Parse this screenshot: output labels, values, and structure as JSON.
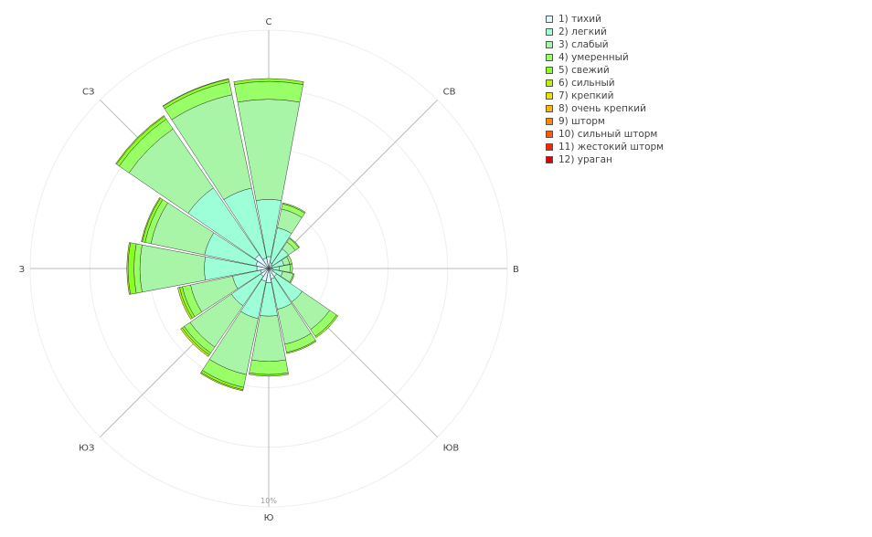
{
  "chart_data": {
    "type": "barpolar",
    "title": "",
    "direction_labels": [
      {
        "direction": "С",
        "angle": 0
      },
      {
        "direction": "СВ",
        "angle": 45
      },
      {
        "direction": "В",
        "angle": 90
      },
      {
        "direction": "ЮВ",
        "angle": 135
      },
      {
        "direction": "Ю",
        "angle": 180
      },
      {
        "direction": "ЮЗ",
        "angle": 225
      },
      {
        "direction": "З",
        "angle": 270
      },
      {
        "direction": "СЗ",
        "angle": 315
      }
    ],
    "sectors": [
      0,
      22.5,
      45,
      67.5,
      90,
      112.5,
      135,
      157.5,
      180,
      202.5,
      225,
      247.5,
      270,
      292.5,
      315,
      337.5
    ],
    "radial_tick": {
      "value": 10,
      "label": "10%"
    },
    "grid_rings": [
      2.5,
      5,
      7.5,
      10
    ],
    "radial_max": 10,
    "legend_position": "top-right",
    "series": [
      {
        "name": "1) тихий",
        "color": "#dcfaff",
        "values": [
          0.5,
          0.25,
          0.2,
          0.15,
          0.15,
          0.2,
          0.4,
          0.45,
          0.6,
          0.55,
          0.4,
          0.35,
          0.5,
          0.55,
          0.7,
          0.45
        ]
      },
      {
        "name": "2) легкий",
        "color": "#9cffd8",
        "values": [
          2.4,
          1.5,
          0.8,
          0.5,
          0.3,
          0.4,
          1.3,
          1.3,
          1.4,
          1.6,
          1.5,
          1.2,
          2.2,
          2.2,
          3.4,
          3.0
        ]
      },
      {
        "name": "3) слабый",
        "color": "#a8f5a8",
        "values": [
          4.2,
          0.8,
          0.35,
          0.25,
          0.45,
          0.45,
          1.4,
          1.5,
          1.9,
          2.4,
          2.1,
          1.8,
          2.7,
          2.3,
          3.0,
          4.0
        ]
      },
      {
        "name": "4) умеренный",
        "color": "#99ff66",
        "values": [
          0.75,
          0.22,
          0.18,
          0.1,
          0.1,
          0.05,
          0.35,
          0.35,
          0.55,
          0.55,
          0.3,
          0.35,
          0.25,
          0.25,
          0.5,
          0.55
        ]
      },
      {
        "name": "5) свежий",
        "color": "#88ff22",
        "values": [
          0.12,
          0.05,
          0.04,
          0.0,
          0.0,
          0.0,
          0.07,
          0.05,
          0.07,
          0.1,
          0.1,
          0.12,
          0.25,
          0.12,
          0.14,
          0.12
        ]
      },
      {
        "name": "6) сильный",
        "color": "#bbee11",
        "values": [
          0.0,
          0.0,
          0.0,
          0.0,
          0.0,
          0.0,
          0.0,
          0.0,
          0.0,
          0.05,
          0.08,
          0.08,
          0.05,
          0.04,
          0.04,
          0.02
        ]
      },
      {
        "name": "7) крепкий",
        "color": "#f0e000",
        "values": [
          0,
          0,
          0,
          0,
          0,
          0,
          0,
          0,
          0,
          0,
          0,
          0,
          0,
          0,
          0,
          0
        ]
      },
      {
        "name": "8) очень крепкий",
        "color": "#ffb400",
        "values": [
          0,
          0,
          0,
          0,
          0,
          0,
          0,
          0,
          0,
          0,
          0,
          0,
          0,
          0,
          0,
          0
        ]
      },
      {
        "name": "9) шторм",
        "color": "#ff8800",
        "values": [
          0,
          0,
          0,
          0,
          0,
          0,
          0,
          0,
          0,
          0,
          0,
          0,
          0,
          0,
          0,
          0
        ]
      },
      {
        "name": "10) сильный шторм",
        "color": "#ff5a00",
        "values": [
          0,
          0,
          0,
          0,
          0,
          0,
          0,
          0,
          0,
          0,
          0,
          0,
          0,
          0,
          0,
          0
        ]
      },
      {
        "name": "11) жестокий шторм",
        "color": "#ff2200",
        "values": [
          0,
          0,
          0,
          0,
          0,
          0,
          0,
          0,
          0,
          0,
          0,
          0,
          0,
          0,
          0,
          0
        ]
      },
      {
        "name": "12) ураган",
        "color": "#dd0000",
        "values": [
          0,
          0,
          0,
          0,
          0,
          0,
          0,
          0,
          0,
          0,
          0,
          0,
          0,
          0,
          0,
          0
        ]
      }
    ]
  }
}
